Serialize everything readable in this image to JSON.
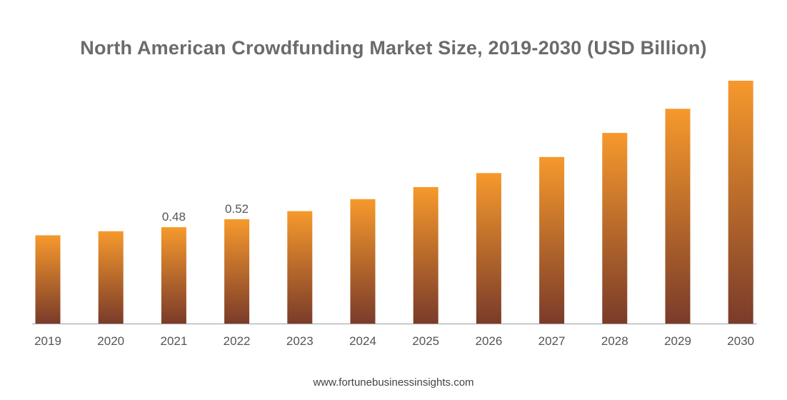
{
  "chart_data": {
    "type": "bar",
    "title": "North American Crowdfunding Market Size, 2019-2030 (USD Billion)",
    "xlabel": "",
    "ylabel": "",
    "categories": [
      "2019",
      "2020",
      "2021",
      "2022",
      "2023",
      "2024",
      "2025",
      "2026",
      "2027",
      "2028",
      "2029",
      "2030"
    ],
    "values": [
      0.44,
      0.46,
      0.48,
      0.52,
      0.56,
      0.62,
      0.68,
      0.75,
      0.83,
      0.95,
      1.07,
      1.21
    ],
    "data_labels": [
      "",
      "",
      "0.48",
      "0.52",
      "",
      "",
      "",
      "",
      "",
      "",
      "",
      ""
    ],
    "ylim": [
      0,
      1.21
    ],
    "grid": false,
    "legend": "none",
    "colors": {
      "bar_top": "#F6992C",
      "bar_bottom": "#7A3B2A",
      "axis": "#9e9e9e",
      "title": "#6b6b6b",
      "tick_label": "#555555",
      "data_label": "#555555"
    }
  },
  "footer": {
    "source": "www.fortunebusinessinsights.com"
  }
}
